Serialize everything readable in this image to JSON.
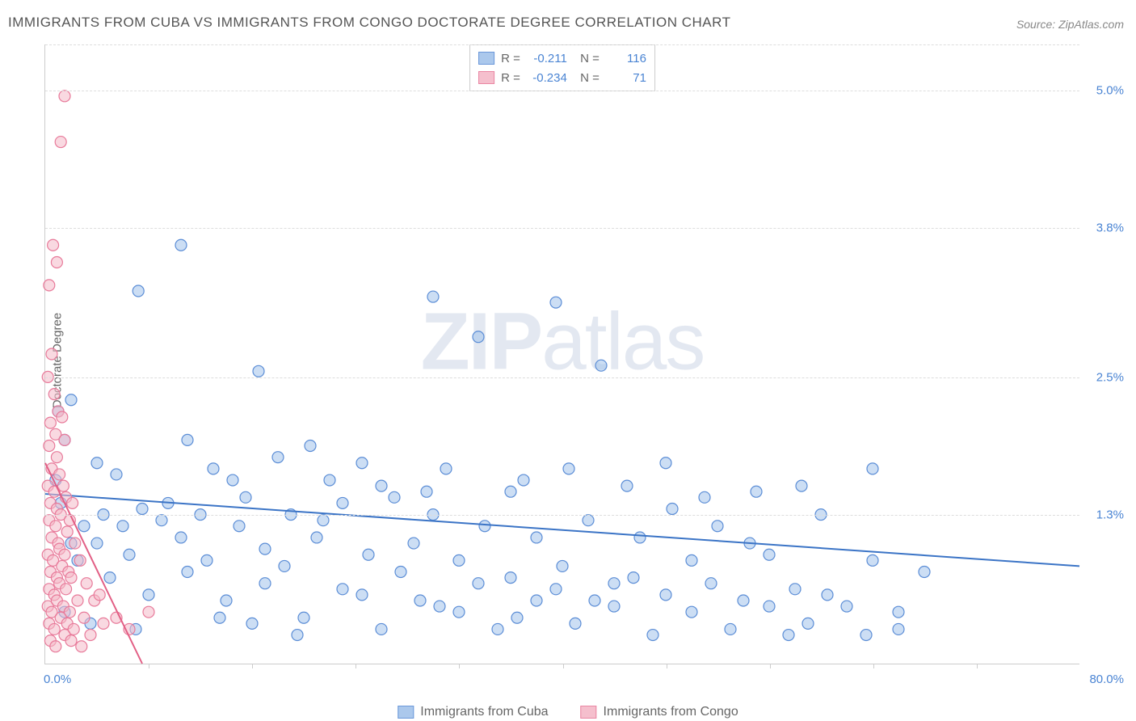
{
  "title": "IMMIGRANTS FROM CUBA VS IMMIGRANTS FROM CONGO DOCTORATE DEGREE CORRELATION CHART",
  "source": "Source: ZipAtlas.com",
  "ylabel": "Doctorate Degree",
  "watermark": {
    "bold": "ZIP",
    "rest": "atlas"
  },
  "chart": {
    "type": "scatter",
    "xlim": [
      0,
      80
    ],
    "ylim": [
      0,
      5.4
    ],
    "x_axis_label_min": "0.0%",
    "x_axis_label_max": "80.0%",
    "y_ticks": [
      {
        "v": 1.3,
        "label": "1.3%"
      },
      {
        "v": 2.5,
        "label": "2.5%"
      },
      {
        "v": 3.8,
        "label": "3.8%"
      },
      {
        "v": 5.0,
        "label": "5.0%"
      }
    ],
    "x_tick_positions": [
      8,
      16,
      24,
      32,
      40,
      48,
      56,
      64,
      72
    ],
    "background_color": "#ffffff",
    "grid_color": "#dddddd",
    "axis_color": "#cccccc",
    "marker_radius": 7,
    "marker_stroke_width": 1.2,
    "trend_line_width": 2,
    "series": [
      {
        "name": "Immigrants from Cuba",
        "fill_color": "#a3c3eb",
        "fill_opacity": 0.55,
        "stroke_color": "#5b8dd6",
        "trend_color": "#3b74c6",
        "R": "-0.211",
        "N": "116",
        "trend": {
          "x1": 0,
          "y1": 1.48,
          "x2": 80,
          "y2": 0.85
        },
        "points": [
          [
            10.5,
            3.65
          ],
          [
            7.2,
            3.25
          ],
          [
            16.5,
            2.55
          ],
          [
            30.0,
            3.2
          ],
          [
            39.5,
            3.15
          ],
          [
            33.5,
            2.85
          ],
          [
            43.0,
            2.6
          ],
          [
            20.5,
            1.9
          ],
          [
            13.0,
            1.7
          ],
          [
            24.5,
            1.75
          ],
          [
            4.0,
            1.75
          ],
          [
            5.5,
            1.65
          ],
          [
            11.0,
            1.95
          ],
          [
            14.5,
            1.6
          ],
          [
            18.0,
            1.8
          ],
          [
            26.0,
            1.55
          ],
          [
            31.0,
            1.7
          ],
          [
            36.0,
            1.5
          ],
          [
            40.5,
            1.7
          ],
          [
            48.0,
            1.75
          ],
          [
            55.0,
            1.5
          ],
          [
            64.0,
            1.7
          ],
          [
            1.0,
            2.2
          ],
          [
            2.0,
            2.3
          ],
          [
            1.5,
            1.95
          ],
          [
            3.0,
            1.2
          ],
          [
            2.0,
            1.05
          ],
          [
            4.5,
            1.3
          ],
          [
            6.0,
            1.2
          ],
          [
            7.5,
            1.35
          ],
          [
            9.0,
            1.25
          ],
          [
            10.5,
            1.1
          ],
          [
            12.0,
            1.3
          ],
          [
            15.0,
            1.2
          ],
          [
            17.0,
            1.0
          ],
          [
            19.0,
            1.3
          ],
          [
            21.0,
            1.1
          ],
          [
            23.0,
            1.4
          ],
          [
            25.0,
            0.95
          ],
          [
            27.0,
            1.45
          ],
          [
            28.5,
            1.05
          ],
          [
            30.0,
            1.3
          ],
          [
            32.0,
            0.9
          ],
          [
            34.0,
            1.2
          ],
          [
            36.0,
            0.75
          ],
          [
            38.0,
            1.1
          ],
          [
            40.0,
            0.85
          ],
          [
            42.0,
            1.25
          ],
          [
            44.0,
            0.7
          ],
          [
            46.0,
            1.1
          ],
          [
            48.0,
            0.6
          ],
          [
            50.0,
            0.9
          ],
          [
            52.0,
            1.2
          ],
          [
            54.0,
            0.55
          ],
          [
            56.0,
            0.95
          ],
          [
            58.0,
            0.65
          ],
          [
            60.0,
            1.3
          ],
          [
            62.0,
            0.5
          ],
          [
            64.0,
            0.9
          ],
          [
            66.0,
            0.45
          ],
          [
            68.0,
            0.8
          ],
          [
            5.0,
            0.75
          ],
          [
            8.0,
            0.6
          ],
          [
            11.0,
            0.8
          ],
          [
            14.0,
            0.55
          ],
          [
            17.0,
            0.7
          ],
          [
            20.0,
            0.4
          ],
          [
            23.0,
            0.65
          ],
          [
            26.0,
            0.3
          ],
          [
            29.0,
            0.55
          ],
          [
            32.0,
            0.45
          ],
          [
            35.0,
            0.3
          ],
          [
            38.0,
            0.55
          ],
          [
            41.0,
            0.35
          ],
          [
            44.0,
            0.5
          ],
          [
            47.0,
            0.25
          ],
          [
            50.0,
            0.45
          ],
          [
            53.0,
            0.3
          ],
          [
            56.0,
            0.5
          ],
          [
            59.0,
            0.35
          ],
          [
            66.0,
            0.3
          ],
          [
            2.5,
            0.9
          ],
          [
            4.0,
            1.05
          ],
          [
            6.5,
            0.95
          ],
          [
            9.5,
            1.4
          ],
          [
            12.5,
            0.9
          ],
          [
            15.5,
            1.45
          ],
          [
            18.5,
            0.85
          ],
          [
            21.5,
            1.25
          ],
          [
            24.5,
            0.6
          ],
          [
            27.5,
            0.8
          ],
          [
            30.5,
            0.5
          ],
          [
            33.5,
            0.7
          ],
          [
            36.5,
            0.4
          ],
          [
            39.5,
            0.65
          ],
          [
            42.5,
            0.55
          ],
          [
            45.5,
            0.75
          ],
          [
            48.5,
            1.35
          ],
          [
            51.5,
            0.7
          ],
          [
            54.5,
            1.05
          ],
          [
            57.5,
            0.25
          ],
          [
            60.5,
            0.6
          ],
          [
            63.5,
            0.25
          ],
          [
            58.5,
            1.55
          ],
          [
            51.0,
            1.45
          ],
          [
            45.0,
            1.55
          ],
          [
            37.0,
            1.6
          ],
          [
            29.5,
            1.5
          ],
          [
            22.0,
            1.6
          ],
          [
            16.0,
            0.35
          ],
          [
            13.5,
            0.4
          ],
          [
            19.5,
            0.25
          ],
          [
            7.0,
            0.3
          ],
          [
            1.5,
            0.45
          ],
          [
            3.5,
            0.35
          ],
          [
            0.8,
            1.6
          ],
          [
            1.2,
            1.4
          ]
        ]
      },
      {
        "name": "Immigrants from Congo",
        "fill_color": "#f4b9c8",
        "fill_opacity": 0.55,
        "stroke_color": "#e87a9a",
        "trend_color": "#e25f85",
        "R": "-0.234",
        "N": "71",
        "trend": {
          "x1": 0,
          "y1": 1.75,
          "x2": 7.5,
          "y2": 0
        },
        "points": [
          [
            1.5,
            4.95
          ],
          [
            1.2,
            4.55
          ],
          [
            0.6,
            3.65
          ],
          [
            0.9,
            3.5
          ],
          [
            0.3,
            3.3
          ],
          [
            0.5,
            2.7
          ],
          [
            0.2,
            2.5
          ],
          [
            0.7,
            2.35
          ],
          [
            1.0,
            2.2
          ],
          [
            0.4,
            2.1
          ],
          [
            0.8,
            2.0
          ],
          [
            1.3,
            2.15
          ],
          [
            0.3,
            1.9
          ],
          [
            0.9,
            1.8
          ],
          [
            1.5,
            1.95
          ],
          [
            0.5,
            1.7
          ],
          [
            1.1,
            1.65
          ],
          [
            0.2,
            1.55
          ],
          [
            0.7,
            1.5
          ],
          [
            1.4,
            1.55
          ],
          [
            0.4,
            1.4
          ],
          [
            0.9,
            1.35
          ],
          [
            1.6,
            1.45
          ],
          [
            0.3,
            1.25
          ],
          [
            0.8,
            1.2
          ],
          [
            1.2,
            1.3
          ],
          [
            0.5,
            1.1
          ],
          [
            1.0,
            1.05
          ],
          [
            1.7,
            1.15
          ],
          [
            0.2,
            0.95
          ],
          [
            0.6,
            0.9
          ],
          [
            1.1,
            1.0
          ],
          [
            1.5,
            0.95
          ],
          [
            0.4,
            0.8
          ],
          [
            0.9,
            0.75
          ],
          [
            1.3,
            0.85
          ],
          [
            1.8,
            0.8
          ],
          [
            0.3,
            0.65
          ],
          [
            0.7,
            0.6
          ],
          [
            1.1,
            0.7
          ],
          [
            1.6,
            0.65
          ],
          [
            2.0,
            0.75
          ],
          [
            0.2,
            0.5
          ],
          [
            0.5,
            0.45
          ],
          [
            0.9,
            0.55
          ],
          [
            1.4,
            0.5
          ],
          [
            1.9,
            0.45
          ],
          [
            2.5,
            0.55
          ],
          [
            0.3,
            0.35
          ],
          [
            0.7,
            0.3
          ],
          [
            1.2,
            0.4
          ],
          [
            1.7,
            0.35
          ],
          [
            2.2,
            0.3
          ],
          [
            3.0,
            0.4
          ],
          [
            0.4,
            0.2
          ],
          [
            0.8,
            0.15
          ],
          [
            1.5,
            0.25
          ],
          [
            2.0,
            0.2
          ],
          [
            2.8,
            0.15
          ],
          [
            3.5,
            0.25
          ],
          [
            4.5,
            0.35
          ],
          [
            5.5,
            0.4
          ],
          [
            6.5,
            0.3
          ],
          [
            8.0,
            0.45
          ],
          [
            2.3,
            1.05
          ],
          [
            2.7,
            0.9
          ],
          [
            3.2,
            0.7
          ],
          [
            3.8,
            0.55
          ],
          [
            4.2,
            0.6
          ],
          [
            1.9,
            1.25
          ],
          [
            2.1,
            1.4
          ]
        ]
      }
    ]
  },
  "legend_bottom": [
    {
      "label": "Immigrants from Cuba",
      "fill": "#a3c3eb",
      "stroke": "#5b8dd6"
    },
    {
      "label": "Immigrants from Congo",
      "fill": "#f4b9c8",
      "stroke": "#e87a9a"
    }
  ]
}
